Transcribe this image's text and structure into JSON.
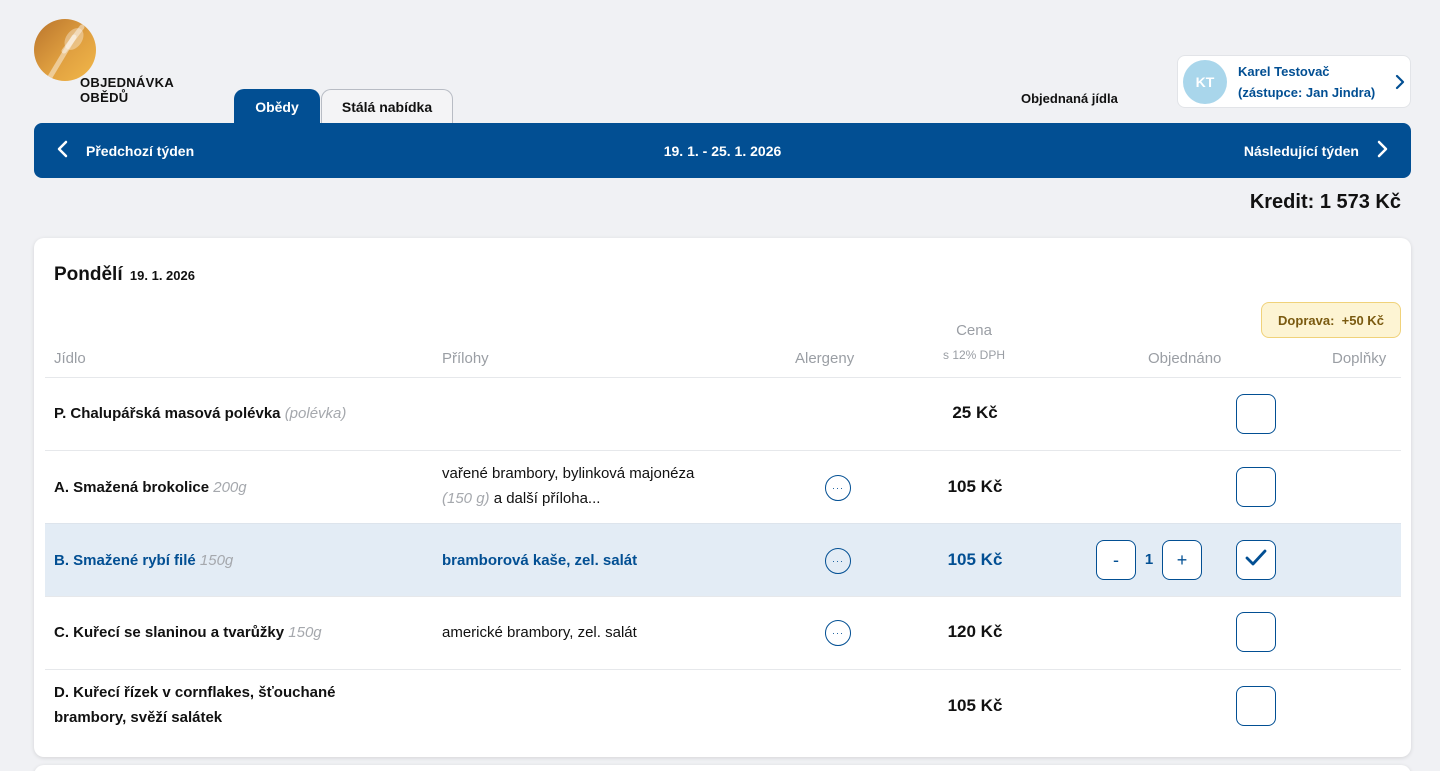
{
  "app": {
    "logo_line1": "OBJEDNÁVKA",
    "logo_line2": "OBĚDŮ"
  },
  "tabs": [
    {
      "label": "Obědy",
      "active": true
    },
    {
      "label": "Stálá nabídka",
      "active": false
    }
  ],
  "header": {
    "ordered_link": "Objednaná jídla"
  },
  "user": {
    "initials": "KT",
    "name": "Karel Testovač",
    "substitute": "(zástupce: Jan Jindra)"
  },
  "week": {
    "prev_label": "Předchozí týden",
    "range": "19. 1. - 25. 1. 2026",
    "next_label": "Následující týden"
  },
  "credit": "Kredit: 1 573 Kč",
  "day": {
    "name": "Pondělí",
    "date": "19. 1. 2026",
    "delivery_label": "Doprava:",
    "delivery_value": "+50 Kč",
    "columns": {
      "meal": "Jídlo",
      "sides": "Přílohy",
      "allergens": "Alergeny",
      "price": "Cena",
      "price_note": "s 12% DPH",
      "ordered": "Objednáno",
      "extras": "Doplňky"
    },
    "allergen_dots": "···",
    "meals": [
      {
        "name": "P. Chalupářská masová polévka",
        "note": "(polévka)",
        "sides": "",
        "sides_weight": "",
        "sides_rest": "",
        "price": "25 Kč",
        "has_allergens": false,
        "ordered": false
      },
      {
        "name": "A. Smažená brokolice",
        "note": "200g",
        "sides": "vařené brambory, bylinková majonéza",
        "sides_weight": "(150 g)",
        "sides_rest": " a další příloha...",
        "price": "105 Kč",
        "has_allergens": true,
        "ordered": false
      },
      {
        "name": "B. Smažené rybí filé",
        "note": "150g",
        "sides": "bramborová kaše, zel. salát",
        "sides_weight": "",
        "sides_rest": "",
        "price": "105 Kč",
        "has_allergens": true,
        "ordered": true,
        "quantity": "1",
        "minus": "-",
        "plus": "+"
      },
      {
        "name": "C. Kuřecí se slaninou a tvarůžky",
        "note": "150g",
        "sides": "americké brambory, zel. salát",
        "sides_weight": "",
        "sides_rest": "",
        "price": "120 Kč",
        "has_allergens": true,
        "ordered": false
      },
      {
        "name_line1": "D. Kuřecí řízek v cornflakes, šťouchané",
        "name_line2": "brambory, svěží salátek",
        "price": "105 Kč",
        "has_allergens": false,
        "ordered": false
      }
    ]
  },
  "colors": {
    "brand": "#024f93",
    "selected_row": "#e3ecf5",
    "background": "#f0f1f4"
  }
}
